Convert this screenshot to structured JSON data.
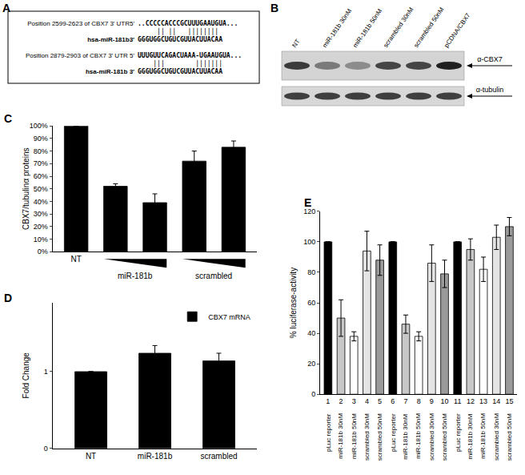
{
  "panels": {
    "A": {
      "label": "A",
      "alignments": [
        {
          "site": "Position 2599-2623 of CBX7 3' UTR5'",
          "target": "..CCCCCACCCGCUUUGAAUGUA...",
          "pairing": "     || ||   ||||||||",
          "mirna": "hsa-miR-181b3'",
          "mirna_seq": "GGGUGGCUGUCGUUACUUACAA"
        },
        {
          "site": "Position 2879-2903 of CBX7 3' UTR 5'",
          "target": "UUUGUUCAGACUAAA-UGAAUGUA...",
          "pairing": "    |||        |||||||",
          "mirna": "hsa-miR-181b 3'",
          "mirna_seq": "GGGUGGCUGUCGUUACUUACAA"
        }
      ]
    },
    "B": {
      "label": "B",
      "lanes": [
        "NT",
        "miR-181b 30nM",
        "miR-181b 50nM",
        "scrambled 30nM",
        "scrambled 50nM",
        "pCDNA/CBX7"
      ],
      "blots": [
        "α-CBX7",
        "α-tubulin"
      ]
    }
  },
  "chart_data": [
    {
      "panel": "C",
      "type": "bar",
      "categories": [
        "NT",
        null,
        null,
        null,
        null
      ],
      "values": [
        100,
        52,
        39,
        72,
        83
      ],
      "errors": [
        null,
        2,
        7,
        8,
        5
      ],
      "color": "#000000",
      "ylim": [
        0,
        100
      ],
      "yticks": [
        {
          "value": 0,
          "label": "0%"
        },
        {
          "value": 10,
          "label": "10%"
        },
        {
          "value": 20,
          "label": "20%"
        },
        {
          "value": 30,
          "label": "30%"
        },
        {
          "value": 40,
          "label": "40%"
        },
        {
          "value": 50,
          "label": "50%"
        },
        {
          "value": 60,
          "label": "60%"
        },
        {
          "value": 70,
          "label": "70%"
        },
        {
          "value": 80,
          "label": "80%"
        },
        {
          "value": 90,
          "label": "90%"
        },
        {
          "value": 100,
          "label": "100%"
        }
      ],
      "y_label": "CBX7/tubulinα proteins",
      "annotations": [
        {
          "text": "miR-181b",
          "x": 1.5
        },
        {
          "text": "scrambled",
          "x": 3.5
        }
      ]
    },
    {
      "panel": "D",
      "type": "bar",
      "categories": [
        "NT",
        "miR-181b",
        "scrambled"
      ],
      "series": [
        {
          "name": "CBX7 mRNA",
          "color": "#000000",
          "values": [
            1,
            1.24,
            1.14
          ],
          "errors": [
            null,
            0.1,
            0.1
          ]
        }
      ],
      "ylim": [
        0,
        1.9
      ],
      "yticks": [
        0,
        1
      ],
      "y_label": "Fold Change",
      "legend": "upper right"
    },
    {
      "panel": "E",
      "type": "bar",
      "x": [
        1,
        2,
        3,
        4,
        5,
        6,
        7,
        8,
        9,
        10,
        11,
        12,
        13,
        14,
        15
      ],
      "values": [
        100,
        50,
        38,
        94,
        88,
        100,
        46,
        38,
        86,
        79,
        100,
        95,
        82,
        103,
        110
      ],
      "errors": [
        null,
        12,
        3,
        13,
        10,
        null,
        6,
        3,
        12,
        9,
        null,
        7,
        8,
        8,
        6
      ],
      "colors": [
        "#000000",
        "#c8c8c8",
        "#ffffff",
        "#e4e4e4",
        "#9a9a9a",
        "#000000",
        "#c8c8c8",
        "#ffffff",
        "#e4e4e4",
        "#9a9a9a",
        "#000000",
        "#c8c8c8",
        "#ffffff",
        "#e4e4e4",
        "#9a9a9a"
      ],
      "xlim": [
        0.4,
        15.6
      ],
      "xticks": [
        1,
        2,
        3,
        4,
        5,
        6,
        7,
        8,
        9,
        10,
        11,
        12,
        13,
        14,
        15
      ],
      "ylim": [
        0,
        120
      ],
      "yticks": [
        0,
        20,
        40,
        60,
        80,
        100,
        120
      ],
      "y_label": "% luciferase-activity",
      "annotations": [
        {
          "text": "pLuc reporter",
          "x": 1
        },
        {
          "text": "miR-181b 30nM",
          "x": 2
        },
        {
          "text": "miR-181b 50nM",
          "x": 3
        },
        {
          "text": "scrambled 30nM",
          "x": 4
        },
        {
          "text": "scrambled 50nM",
          "x": 5
        },
        {
          "text": "pLuc reporter",
          "x": 6
        },
        {
          "text": "miR-181b 30nM",
          "x": 7
        },
        {
          "text": "miR-181b 50nM",
          "x": 8
        },
        {
          "text": "scrambled 30nM",
          "x": 9
        },
        {
          "text": "scrambled 50nM",
          "x": 10
        },
        {
          "text": "pLuc reporter",
          "x": 11
        },
        {
          "text": "miR-181b 30nM",
          "x": 12
        },
        {
          "text": "miR-181b 50nM",
          "x": 13
        },
        {
          "text": "scrambled 30nM",
          "x": 14
        },
        {
          "text": "scrambled 50nM",
          "x": 15
        }
      ]
    }
  ]
}
